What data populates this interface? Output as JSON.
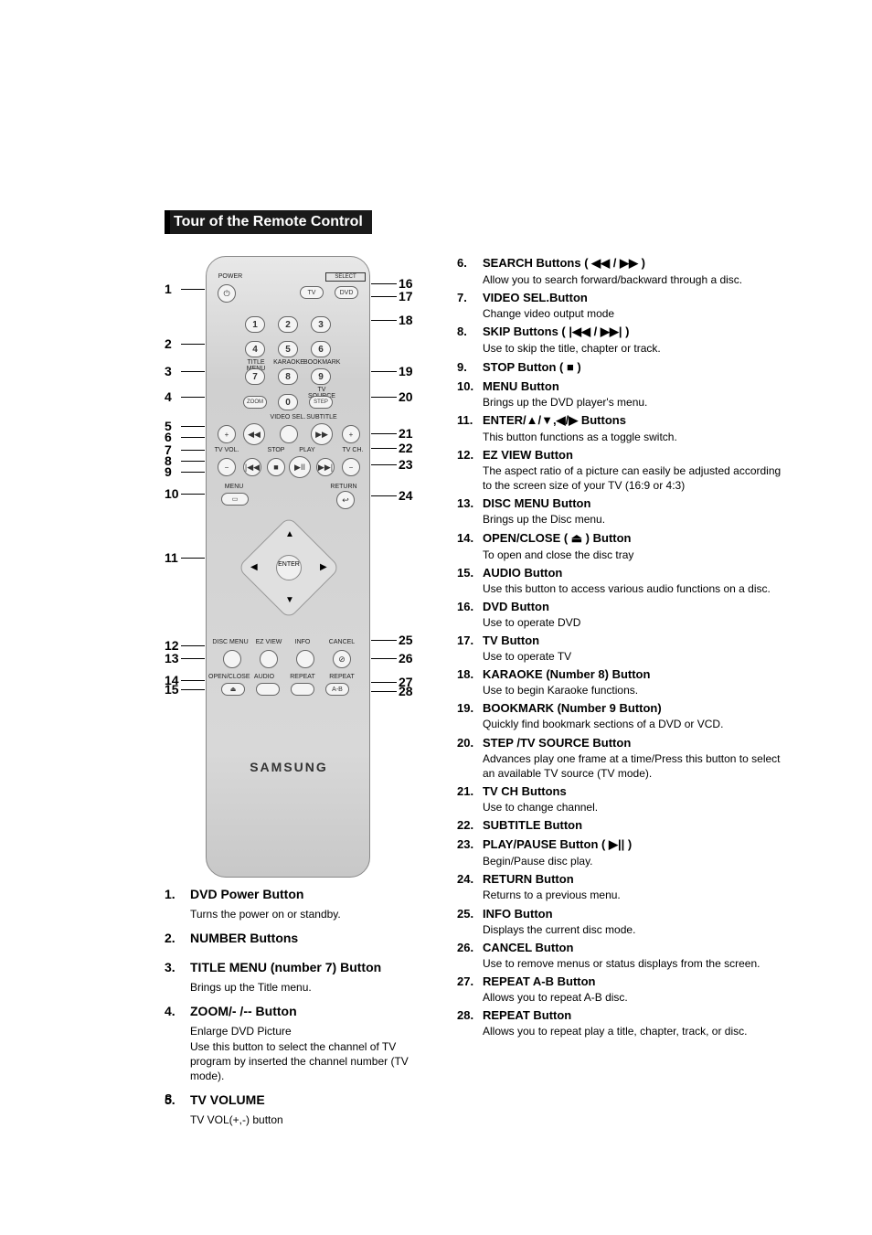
{
  "section_title": "Tour of the Remote Control",
  "page_number": "8",
  "brand": "SAMSUNG",
  "remote_labels": {
    "power": "POWER",
    "select": "SELECT",
    "tv": "TV",
    "dvd": "DVD",
    "title_menu": "TITLE MENU",
    "karaoke": "KARAOKE",
    "bookmark": "BOOKMARK",
    "tv_source": "TV SOURCE",
    "zoom": "ZOOM",
    "step": "STEP",
    "video_sel": "VIDEO SEL.",
    "subtitle": "SUBTITLE",
    "tv_vol": "TV VOL.",
    "stop": "STOP",
    "play": "PLAY",
    "tv_ch": "TV CH.",
    "menu": "MENU",
    "return": "RETURN",
    "enter": "ENTER",
    "disc_menu": "DISC MENU",
    "ez_view": "EZ VIEW",
    "info": "INFO",
    "cancel": "CANCEL",
    "open_close": "OPEN/CLOSE",
    "audio": "AUDIO",
    "repeat": "REPEAT",
    "repeat_ab": "REPEAT",
    "ab": "A-B"
  },
  "callouts_left": [
    "1",
    "2",
    "3",
    "4",
    "5",
    "6",
    "7",
    "8",
    "9",
    "10",
    "11",
    "12",
    "13",
    "14",
    "15"
  ],
  "callouts_right": [
    "16",
    "17",
    "18",
    "19",
    "20",
    "21",
    "22",
    "23",
    "24",
    "25",
    "26",
    "27",
    "28"
  ],
  "left_items": [
    {
      "n": "1.",
      "t": "DVD Power Button",
      "d": "Turns the power on or standby."
    },
    {
      "n": "2.",
      "t": "NUMBER Buttons",
      "d": ""
    },
    {
      "n": "3.",
      "t": "TITLE MENU (number 7) Button",
      "d": "Brings up the Title menu."
    },
    {
      "n": "4.",
      "t": "ZOOM/- /-- Button",
      "d": "Enlarge DVD Picture\nUse this button to select the channel of TV program by inserted the channel number (TV mode)."
    },
    {
      "n": "5.",
      "t": "TV VOLUME",
      "d": "TV VOL(+,-) button"
    }
  ],
  "right_items": [
    {
      "n": "6.",
      "t": "SEARCH Buttons ( ◀◀ / ▶▶ )",
      "d": "Allow you to search forward/backward through a disc."
    },
    {
      "n": "7.",
      "t": "VIDEO SEL.Button",
      "d": "Change video output mode"
    },
    {
      "n": "8.",
      "t": "SKIP Buttons ( |◀◀ / ▶▶| )",
      "d": "Use to skip the title, chapter or track."
    },
    {
      "n": "9.",
      "t": "STOP Button ( ■ )",
      "d": ""
    },
    {
      "n": "10.",
      "t": "MENU Button",
      "d": "Brings up the DVD player's menu."
    },
    {
      "n": "11.",
      "t": "ENTER/▲/▼,◀/▶ Buttons",
      "d": "This button functions as a toggle switch."
    },
    {
      "n": "12.",
      "t": "EZ VIEW Button",
      "d": "The aspect ratio of a picture can easily be adjusted according to the screen size of your TV (16:9 or 4:3)"
    },
    {
      "n": "13.",
      "t": "DISC MENU Button",
      "d": "Brings up the Disc menu."
    },
    {
      "n": "14.",
      "t": "OPEN/CLOSE ( ⏏ ) Button",
      "d": "To open and close the disc tray"
    },
    {
      "n": "15.",
      "t": "AUDIO Button",
      "d": "Use this button to access various audio functions on a disc."
    },
    {
      "n": "16.",
      "t": "DVD Button",
      "d": "Use to operate DVD"
    },
    {
      "n": "17.",
      "t": "TV Button",
      "d": "Use to operate TV"
    },
    {
      "n": "18.",
      "t": "KARAOKE (Number 8) Button",
      "d": "Use to begin Karaoke functions."
    },
    {
      "n": "19.",
      "t": "BOOKMARK (Number 9 Button)",
      "d": "Quickly find bookmark sections of a DVD or VCD."
    },
    {
      "n": "20.",
      "t": "STEP /TV SOURCE Button",
      "d": "Advances play one frame at a time/Press this button to select an available TV source (TV mode)."
    },
    {
      "n": "21.",
      "t": "TV CH Buttons",
      "d": "Use to change channel."
    },
    {
      "n": "22.",
      "t": "SUBTITLE Button",
      "d": ""
    },
    {
      "n": "23.",
      "t": "PLAY/PAUSE Button ( ▶|| )",
      "d": "Begin/Pause disc play."
    },
    {
      "n": "24.",
      "t": "RETURN Button",
      "d": "Returns to a previous menu."
    },
    {
      "n": "25.",
      "t": "INFO Button",
      "d": "Displays the current disc mode."
    },
    {
      "n": "26.",
      "t": "CANCEL Button",
      "d": "Use to remove menus or status displays from the screen."
    },
    {
      "n": "27.",
      "t": "REPEAT A-B Button",
      "d": "Allows you to repeat A-B disc."
    },
    {
      "n": "28.",
      "t": "REPEAT Button",
      "d": "Allows you to repeat play a title, chapter, track, or disc."
    }
  ],
  "colors": {
    "title_bg": "#1a1a1a",
    "title_fg": "#ffffff",
    "text": "#000000",
    "remote_bg_top": "#e8e8e8",
    "remote_bg_mid": "#d8d8d8",
    "remote_border": "#888888"
  }
}
